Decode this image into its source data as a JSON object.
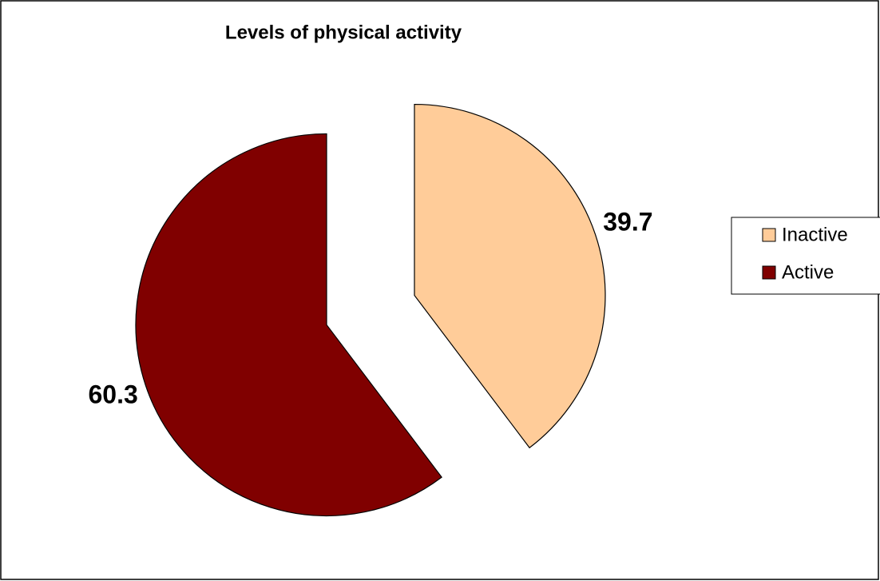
{
  "chart_data": {
    "type": "pie",
    "title": "Levels of physical activity",
    "categories": [
      "Inactive",
      "Active"
    ],
    "values": [
      39.7,
      60.3
    ],
    "colors": [
      "#ffcc99",
      "#800000"
    ],
    "legend": "right"
  }
}
